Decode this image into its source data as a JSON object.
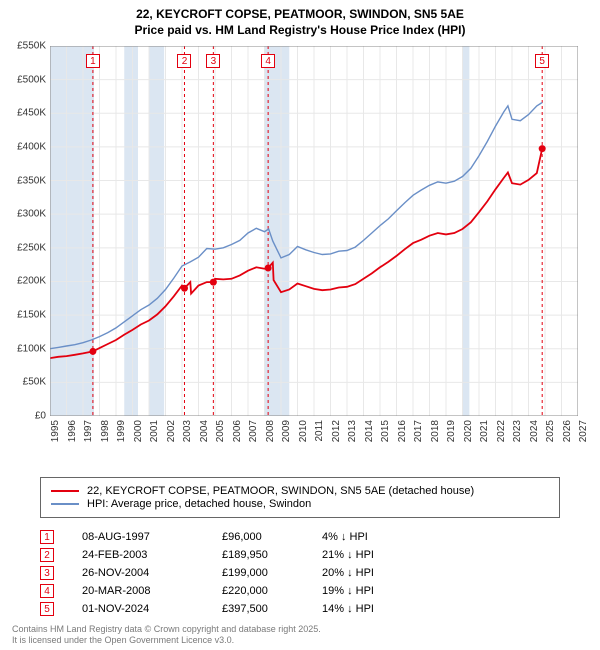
{
  "title_line1": "22, KEYCROFT COPSE, PEATMOOR, SWINDON, SN5 5AE",
  "title_line2": "Price paid vs. HM Land Registry's House Price Index (HPI)",
  "chart": {
    "type": "line",
    "background_color": "#ffffff",
    "grid_color": "#e8e8e8",
    "recession_band_color": "#dbe6f2",
    "recession_bands": [
      [
        1995,
        1997.667
      ],
      [
        1999.5,
        2000.333
      ],
      [
        2001,
        2001.917
      ],
      [
        2008,
        2009.5
      ],
      [
        2020,
        2020.417
      ]
    ],
    "xlim": [
      1995,
      2027
    ],
    "xtick_step": 1,
    "xticks": [
      1995,
      1996,
      1997,
      1998,
      1999,
      2000,
      2001,
      2002,
      2003,
      2004,
      2005,
      2006,
      2007,
      2008,
      2009,
      2010,
      2011,
      2012,
      2013,
      2014,
      2015,
      2016,
      2017,
      2018,
      2019,
      2020,
      2021,
      2022,
      2023,
      2024,
      2025,
      2026,
      2027
    ],
    "ylim": [
      0,
      550000
    ],
    "ytick_step": 50000,
    "yticks": [
      0,
      50000,
      100000,
      150000,
      200000,
      250000,
      300000,
      350000,
      400000,
      450000,
      500000,
      550000
    ],
    "ytick_labels": [
      "£0",
      "£50K",
      "£100K",
      "£150K",
      "£200K",
      "£250K",
      "£300K",
      "£350K",
      "£400K",
      "£450K",
      "£500K",
      "£550K"
    ],
    "series": [
      {
        "id": "hpi",
        "label": "HPI: Average price, detached house, Swindon",
        "color": "#6a8fc7",
        "line_width": 1.4,
        "points": [
          [
            1995,
            100000
          ],
          [
            1995.5,
            102000
          ],
          [
            1996,
            104000
          ],
          [
            1996.5,
            106000
          ],
          [
            1997,
            109000
          ],
          [
            1997.5,
            113000
          ],
          [
            1998,
            118000
          ],
          [
            1998.5,
            124000
          ],
          [
            1999,
            131000
          ],
          [
            1999.5,
            140000
          ],
          [
            2000,
            149000
          ],
          [
            2000.5,
            158000
          ],
          [
            2001,
            165000
          ],
          [
            2001.5,
            175000
          ],
          [
            2002,
            188000
          ],
          [
            2002.5,
            205000
          ],
          [
            2003,
            223000
          ],
          [
            2003.5,
            229000
          ],
          [
            2004,
            236000
          ],
          [
            2004.5,
            249000
          ],
          [
            2005,
            248000
          ],
          [
            2005.5,
            250000
          ],
          [
            2006,
            255000
          ],
          [
            2006.5,
            261000
          ],
          [
            2007,
            272000
          ],
          [
            2007.5,
            279000
          ],
          [
            2008,
            274000
          ],
          [
            2008.25,
            278000
          ],
          [
            2008.5,
            260000
          ],
          [
            2009,
            235000
          ],
          [
            2009.5,
            240000
          ],
          [
            2010,
            252000
          ],
          [
            2010.5,
            247000
          ],
          [
            2011,
            243000
          ],
          [
            2011.5,
            240000
          ],
          [
            2012,
            241000
          ],
          [
            2012.5,
            245000
          ],
          [
            2013,
            246000
          ],
          [
            2013.5,
            251000
          ],
          [
            2014,
            261000
          ],
          [
            2014.5,
            272000
          ],
          [
            2015,
            283000
          ],
          [
            2015.5,
            293000
          ],
          [
            2016,
            305000
          ],
          [
            2016.5,
            317000
          ],
          [
            2017,
            328000
          ],
          [
            2017.5,
            336000
          ],
          [
            2018,
            343000
          ],
          [
            2018.5,
            348000
          ],
          [
            2019,
            346000
          ],
          [
            2019.5,
            349000
          ],
          [
            2020,
            356000
          ],
          [
            2020.5,
            368000
          ],
          [
            2021,
            387000
          ],
          [
            2021.5,
            408000
          ],
          [
            2022,
            431000
          ],
          [
            2022.5,
            452000
          ],
          [
            2022.75,
            461000
          ],
          [
            2023,
            441000
          ],
          [
            2023.5,
            439000
          ],
          [
            2024,
            448000
          ],
          [
            2024.5,
            461000
          ],
          [
            2024.83,
            466000
          ]
        ]
      },
      {
        "id": "property",
        "label": "22, KEYCROFT COPSE, PEATMOOR, SWINDON, SN5 5AE (detached house)",
        "color": "#e3000f",
        "line_width": 1.8,
        "points": [
          [
            1995,
            86000
          ],
          [
            1995.5,
            88000
          ],
          [
            1996,
            89000
          ],
          [
            1996.5,
            91000
          ],
          [
            1997,
            93000
          ],
          [
            1997.6,
            96000
          ],
          [
            1998,
            101000
          ],
          [
            1998.5,
            107000
          ],
          [
            1999,
            113000
          ],
          [
            1999.5,
            121000
          ],
          [
            2000,
            128000
          ],
          [
            2000.5,
            136000
          ],
          [
            2001,
            142000
          ],
          [
            2001.5,
            151000
          ],
          [
            2002,
            163000
          ],
          [
            2002.5,
            178000
          ],
          [
            2003,
            194000
          ],
          [
            2003.15,
            189950
          ],
          [
            2003.5,
            199000
          ],
          [
            2003.55,
            182000
          ],
          [
            2004,
            194000
          ],
          [
            2004.5,
            199000
          ],
          [
            2004.9,
            199000
          ],
          [
            2005,
            204000
          ],
          [
            2005.5,
            203000
          ],
          [
            2006,
            204000
          ],
          [
            2006.5,
            209000
          ],
          [
            2007,
            216000
          ],
          [
            2007.5,
            221000
          ],
          [
            2008,
            219000
          ],
          [
            2008.22,
            220000
          ],
          [
            2008.5,
            228000
          ],
          [
            2008.55,
            202000
          ],
          [
            2009,
            184000
          ],
          [
            2009.5,
            188000
          ],
          [
            2010,
            197000
          ],
          [
            2010.5,
            193000
          ],
          [
            2011,
            189000
          ],
          [
            2011.5,
            187000
          ],
          [
            2012,
            188000
          ],
          [
            2012.5,
            191000
          ],
          [
            2013,
            192000
          ],
          [
            2013.5,
            196000
          ],
          [
            2014,
            204000
          ],
          [
            2014.5,
            212000
          ],
          [
            2015,
            221000
          ],
          [
            2015.5,
            229000
          ],
          [
            2016,
            238000
          ],
          [
            2016.5,
            248000
          ],
          [
            2017,
            257000
          ],
          [
            2017.5,
            262000
          ],
          [
            2018,
            268000
          ],
          [
            2018.5,
            272000
          ],
          [
            2019,
            270000
          ],
          [
            2019.5,
            272000
          ],
          [
            2020,
            278000
          ],
          [
            2020.5,
            288000
          ],
          [
            2021,
            303000
          ],
          [
            2021.5,
            319000
          ],
          [
            2022,
            337000
          ],
          [
            2022.5,
            354000
          ],
          [
            2022.75,
            362000
          ],
          [
            2023,
            346000
          ],
          [
            2023.5,
            344000
          ],
          [
            2024,
            351000
          ],
          [
            2024.5,
            361000
          ],
          [
            2024.83,
            397500
          ]
        ]
      }
    ],
    "sale_markers": [
      {
        "n": "1",
        "x": 1997.6,
        "y": 96000,
        "dash_color": "#e3000f"
      },
      {
        "n": "2",
        "x": 2003.15,
        "y": 189950,
        "dash_color": "#e3000f"
      },
      {
        "n": "3",
        "x": 2004.9,
        "y": 199000,
        "dash_color": "#e3000f"
      },
      {
        "n": "4",
        "x": 2008.22,
        "y": 220000,
        "dash_color": "#e3000f"
      },
      {
        "n": "5",
        "x": 2024.83,
        "y": 397500,
        "dash_color": "#e3000f"
      }
    ]
  },
  "legend": {
    "rows": [
      {
        "color": "#e3000f",
        "label": "22, KEYCROFT COPSE, PEATMOOR, SWINDON, SN5 5AE (detached house)"
      },
      {
        "color": "#6a8fc7",
        "label": "HPI: Average price, detached house, Swindon"
      }
    ]
  },
  "sales": [
    {
      "n": "1",
      "date": "08-AUG-1997",
      "price": "£96,000",
      "delta": "4% ↓ HPI"
    },
    {
      "n": "2",
      "date": "24-FEB-2003",
      "price": "£189,950",
      "delta": "21% ↓ HPI"
    },
    {
      "n": "3",
      "date": "26-NOV-2004",
      "price": "£199,000",
      "delta": "20% ↓ HPI"
    },
    {
      "n": "4",
      "date": "20-MAR-2008",
      "price": "£220,000",
      "delta": "19% ↓ HPI"
    },
    {
      "n": "5",
      "date": "01-NOV-2024",
      "price": "£397,500",
      "delta": "14% ↓ HPI"
    }
  ],
  "footer_line1": "Contains HM Land Registry data © Crown copyright and database right 2025.",
  "footer_line2": "It is licensed under the Open Government Licence v3.0."
}
